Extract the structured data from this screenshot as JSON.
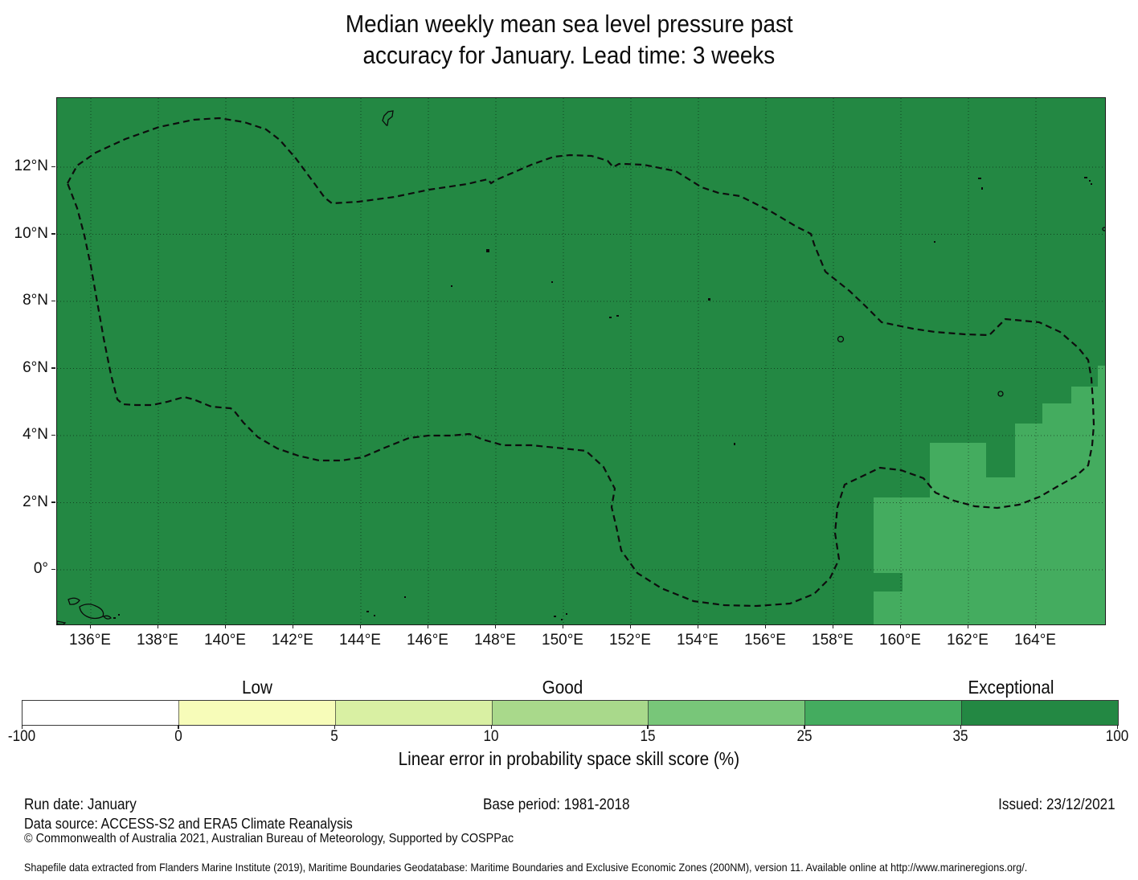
{
  "title": {
    "line1": "Median weekly mean sea level pressure past",
    "line2": "accuracy for January. Lead time: 3 weeks"
  },
  "map": {
    "lat_ticks": [
      "12°N",
      "10°N",
      "8°N",
      "6°N",
      "4°N",
      "2°N",
      "0°"
    ],
    "lon_ticks": [
      "136°E",
      "138°E",
      "140°E",
      "142°E",
      "144°E",
      "146°E",
      "148°E",
      "150°E",
      "152°E",
      "154°E",
      "156°E",
      "158°E",
      "160°E",
      "162°E",
      "164°E"
    ]
  },
  "legend": {
    "categories": [
      "Low",
      "Good",
      "Exceptional"
    ],
    "ticks": [
      "-100",
      "0",
      "5",
      "10",
      "15",
      "25",
      "35",
      "100"
    ],
    "segment_colors": [
      "#ffffff",
      "#f7fcb9",
      "#d9f0a3",
      "#a9d98b",
      "#78c679",
      "#44ac5f",
      "#238843"
    ],
    "axis_label": "Linear error in probability space skill score (%)"
  },
  "colors": {
    "map_base": "#238843",
    "map_patch": "#44ac5f",
    "boundary": "#0d0d0d",
    "gridline": "rgba(0,0,0,0.5)"
  },
  "footer": {
    "run_date": "Run date: January",
    "base_period": "Base period: 1981-2018",
    "issued": "Issued: 23/12/2021",
    "data_source": "Data source: ACCESS-S2 and ERA5 Climate Reanalysis",
    "copyright": "© Commonwealth of Australia 2021, Australian Bureau of Meteorology, Supported by COSPPac",
    "shapefile_note": "Shapefile data extracted from Flanders Marine Institute (2019), Maritime Boundaries Geodatabase: Maritime Boundaries and Exclusive Economic Zones (200NM), version 11. Available online at http://www.marineregions.org/."
  },
  "chart_data": {
    "type": "heatmap",
    "subtype": "geographic skill-score map",
    "title": "Median weekly mean sea level pressure past accuracy for January. Lead time: 3 weeks",
    "x_axis": {
      "tick_labels": [
        "136°E",
        "138°E",
        "140°E",
        "142°E",
        "144°E",
        "146°E",
        "148°E",
        "150°E",
        "152°E",
        "154°E",
        "156°E",
        "158°E",
        "160°E",
        "162°E",
        "164°E"
      ],
      "approx_range_deg_east": [
        135.0,
        166.1
      ],
      "grid": true
    },
    "y_axis": {
      "tick_labels": [
        "12°N",
        "10°N",
        "8°N",
        "6°N",
        "4°N",
        "2°N",
        "0°"
      ],
      "approx_range_deg_north": [
        -1.6,
        14.1
      ],
      "grid": true
    },
    "colorbar": {
      "label": "Linear error in probability space skill score (%)",
      "bin_edges": [
        -100,
        0,
        5,
        10,
        15,
        25,
        35,
        100
      ],
      "bin_colors": [
        "#ffffff",
        "#f7fcb9",
        "#d9f0a3",
        "#a9d98b",
        "#78c679",
        "#44ac5f",
        "#238843"
      ],
      "category_labels": [
        {
          "label": "Low",
          "over_bin": "0-5"
        },
        {
          "label": "Good",
          "over_bin": "10-15"
        },
        {
          "label": "Exceptional",
          "over_bin": "35-100"
        }
      ]
    },
    "values": [
      {
        "region": "entire mapped domain except southeast corner",
        "skill_bin": "35-100",
        "category": "Exceptional"
      },
      {
        "region": "stepped patch in southeast corner (approx 159-166°E, south of approx 6°N)",
        "skill_bin": "25-35",
        "category": "Good-to-Exceptional boundary bin"
      }
    ],
    "overlays": [
      "dashed EEZ maritime boundary polygon (200NM zones)",
      "small island coastlines (Guam, Chuuk, atolls, Solomon Islands chain)"
    ],
    "legend_position": "horizontal colorbar below map"
  }
}
